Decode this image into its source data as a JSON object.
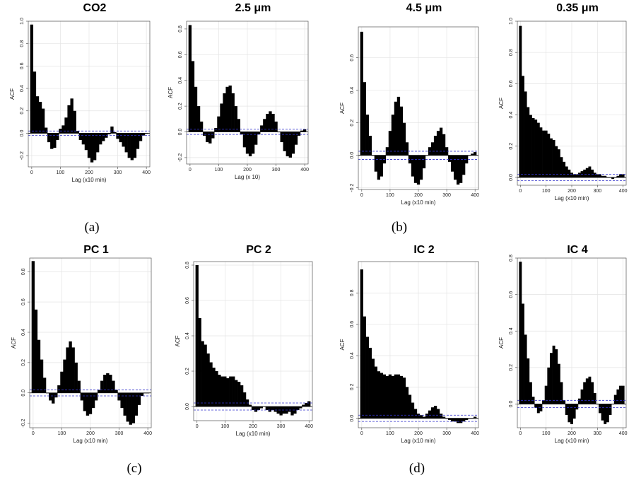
{
  "chart_data": [
    {
      "type": "bar",
      "title": "CO2",
      "xlabel": "Lag (x10 min)",
      "ylabel": "ACF",
      "color": "#000000",
      "ci_color": "#3333cc",
      "ci_lines": [
        0.02,
        -0.02
      ],
      "x": [
        0,
        10,
        20,
        30,
        40,
        50,
        60,
        70,
        80,
        90,
        100,
        110,
        120,
        130,
        140,
        150,
        160,
        170,
        180,
        190,
        200,
        210,
        220,
        230,
        240,
        250,
        260,
        270,
        280,
        290,
        300,
        310,
        320,
        330,
        340,
        350,
        360,
        370,
        380,
        390,
        400
      ],
      "values": [
        0.97,
        0.55,
        0.33,
        0.28,
        0.22,
        0.05,
        -0.08,
        -0.14,
        -0.13,
        -0.06,
        0.04,
        0.07,
        0.14,
        0.25,
        0.31,
        0.2,
        0.02,
        -0.06,
        -0.1,
        -0.15,
        -0.22,
        -0.26,
        -0.24,
        -0.17,
        -0.1,
        -0.07,
        -0.04,
        -0.01,
        0.06,
        0.01,
        -0.05,
        -0.08,
        -0.12,
        -0.17,
        -0.22,
        -0.24,
        -0.22,
        -0.14,
        -0.07,
        -0.02,
        0.0
      ],
      "xlim": [
        -12,
        412
      ],
      "xticks": [
        0,
        100,
        200,
        300,
        400
      ],
      "ylim": [
        -0.3,
        1.0
      ],
      "yticks": [
        {
          "value": -0.2,
          "label": "-0.2"
        },
        {
          "value": 0,
          "label": "0.0"
        },
        {
          "value": 0.2,
          "label": "0.2"
        },
        {
          "value": 0.4,
          "label": "0.4"
        },
        {
          "value": 0.6,
          "label": "0.6"
        },
        {
          "value": 0.8,
          "label": "0.8"
        },
        {
          "value": 1,
          "label": "1.0"
        }
      ],
      "grid": true
    },
    {
      "type": "bar",
      "title": "2.5 μm",
      "xlabel": "Lag (x 10)",
      "ylabel": "ACF",
      "color": "#000000",
      "ci_color": "#3333cc",
      "ci_lines": [
        0.02,
        -0.02
      ],
      "x": [
        0,
        10,
        20,
        30,
        40,
        50,
        60,
        70,
        80,
        90,
        100,
        110,
        120,
        130,
        140,
        150,
        160,
        170,
        180,
        190,
        200,
        210,
        220,
        230,
        240,
        250,
        260,
        270,
        280,
        290,
        300,
        310,
        320,
        330,
        340,
        350,
        360,
        370,
        380,
        390,
        400
      ],
      "values": [
        0.83,
        0.55,
        0.35,
        0.2,
        0.08,
        -0.03,
        -0.08,
        -0.09,
        -0.05,
        0.03,
        0.12,
        0.22,
        0.3,
        0.35,
        0.36,
        0.3,
        0.2,
        0.1,
        -0.02,
        -0.12,
        -0.17,
        -0.19,
        -0.17,
        -0.1,
        -0.02,
        0.05,
        0.1,
        0.14,
        0.16,
        0.14,
        0.08,
        0.0,
        -0.08,
        -0.15,
        -0.19,
        -0.2,
        -0.17,
        -0.1,
        -0.03,
        0.01,
        0.02
      ],
      "xlim": [
        -12,
        412
      ],
      "xticks": [
        0,
        100,
        200,
        300,
        400
      ],
      "ylim": [
        -0.25,
        0.86
      ],
      "yticks": [
        {
          "value": -0.2,
          "label": "-0.2"
        },
        {
          "value": 0,
          "label": "0.0"
        },
        {
          "value": 0.2,
          "label": "0.2"
        },
        {
          "value": 0.4,
          "label": "0.4"
        },
        {
          "value": 0.6,
          "label": "0.6"
        },
        {
          "value": 0.8,
          "label": "0.8"
        }
      ],
      "grid": true
    },
    {
      "type": "bar",
      "title": "4.5 μm",
      "xlabel": "Lag (x10 min)",
      "ylabel": "ACF",
      "color": "#000000",
      "ci_color": "#3333cc",
      "ci_lines": [
        0.025,
        -0.025
      ],
      "x": [
        0,
        10,
        20,
        30,
        40,
        50,
        60,
        70,
        80,
        90,
        100,
        110,
        120,
        130,
        140,
        150,
        160,
        170,
        180,
        190,
        200,
        210,
        220,
        230,
        240,
        250,
        260,
        270,
        280,
        290,
        300,
        310,
        320,
        330,
        340,
        350,
        360,
        370,
        380,
        390,
        400
      ],
      "values": [
        0.76,
        0.45,
        0.25,
        0.12,
        0.0,
        -0.1,
        -0.15,
        -0.13,
        -0.05,
        0.05,
        0.15,
        0.25,
        0.33,
        0.36,
        0.3,
        0.2,
        0.08,
        -0.05,
        -0.13,
        -0.17,
        -0.18,
        -0.15,
        -0.08,
        0.0,
        0.05,
        0.08,
        0.12,
        0.15,
        0.17,
        0.13,
        0.05,
        -0.04,
        -0.1,
        -0.15,
        -0.18,
        -0.17,
        -0.12,
        -0.05,
        0.0,
        0.01,
        0.02
      ],
      "xlim": [
        -12,
        412
      ],
      "xticks": [
        0,
        100,
        200,
        300,
        400
      ],
      "ylim": [
        -0.21,
        0.79
      ],
      "yticks": [
        {
          "value": -0.2,
          "label": "-0.2"
        },
        {
          "value": 0,
          "label": "0.0"
        },
        {
          "value": 0.2,
          "label": "0.2"
        },
        {
          "value": 0.4,
          "label": "0.4"
        },
        {
          "value": 0.6,
          "label": "0.6"
        }
      ],
      "grid": true
    },
    {
      "type": "bar",
      "title": "0.35 μm",
      "xlabel": "Lag (x10 min)",
      "ylabel": "ACF",
      "color": "#000000",
      "ci_color": "#3333cc",
      "ci_lines": [
        0.02,
        -0.02
      ],
      "x": [
        0,
        10,
        20,
        30,
        40,
        50,
        60,
        70,
        80,
        90,
        100,
        110,
        120,
        130,
        140,
        150,
        160,
        170,
        180,
        190,
        200,
        210,
        220,
        230,
        240,
        250,
        260,
        270,
        280,
        290,
        300,
        310,
        320,
        330,
        340,
        350,
        360,
        370,
        380,
        390,
        400
      ],
      "values": [
        0.97,
        0.65,
        0.55,
        0.45,
        0.4,
        0.38,
        0.37,
        0.35,
        0.32,
        0.3,
        0.3,
        0.28,
        0.25,
        0.24,
        0.2,
        0.18,
        0.13,
        0.1,
        0.07,
        0.05,
        0.03,
        0.02,
        0.02,
        0.03,
        0.04,
        0.05,
        0.06,
        0.07,
        0.05,
        0.03,
        0.02,
        0.02,
        0.01,
        0.01,
        0.0,
        0.0,
        -0.01,
        0.0,
        0.01,
        0.02,
        0.02
      ],
      "xlim": [
        -12,
        412
      ],
      "xticks": [
        0,
        100,
        200,
        300,
        400
      ],
      "ylim": [
        -0.05,
        1.0
      ],
      "yticks": [
        {
          "value": 0,
          "label": "0.0"
        },
        {
          "value": 0.2,
          "label": "0.2"
        },
        {
          "value": 0.4,
          "label": "0.4"
        },
        {
          "value": 0.6,
          "label": "0.6"
        },
        {
          "value": 0.8,
          "label": "0.8"
        },
        {
          "value": 1,
          "label": "1.0"
        }
      ],
      "grid": true
    },
    {
      "type": "bar",
      "title": "PC 1",
      "xlabel": "Lag (x10 min)",
      "ylabel": "ACF",
      "color": "#000000",
      "ci_color": "#3333cc",
      "ci_lines": [
        0.02,
        -0.02
      ],
      "x": [
        0,
        10,
        20,
        30,
        40,
        50,
        60,
        70,
        80,
        90,
        100,
        110,
        120,
        130,
        140,
        150,
        160,
        170,
        180,
        190,
        200,
        210,
        220,
        230,
        240,
        250,
        260,
        270,
        280,
        290,
        300,
        310,
        320,
        330,
        340,
        350,
        360,
        370,
        380,
        390,
        400
      ],
      "values": [
        0.87,
        0.55,
        0.35,
        0.22,
        0.1,
        0.0,
        -0.05,
        -0.07,
        -0.03,
        0.05,
        0.14,
        0.22,
        0.3,
        0.34,
        0.3,
        0.2,
        0.08,
        -0.05,
        -0.12,
        -0.15,
        -0.14,
        -0.1,
        -0.05,
        0.02,
        0.08,
        0.12,
        0.13,
        0.12,
        0.08,
        0.02,
        -0.05,
        -0.1,
        -0.15,
        -0.19,
        -0.21,
        -0.2,
        -0.15,
        -0.08,
        -0.02,
        0.0,
        0.0
      ],
      "xlim": [
        -12,
        412
      ],
      "xticks": [
        0,
        100,
        200,
        300,
        400
      ],
      "ylim": [
        -0.23,
        0.89
      ],
      "yticks": [
        {
          "value": -0.2,
          "label": "-0.2"
        },
        {
          "value": 0,
          "label": "0.0"
        },
        {
          "value": 0.2,
          "label": "0.2"
        },
        {
          "value": 0.4,
          "label": "0.4"
        },
        {
          "value": 0.6,
          "label": "0.6"
        },
        {
          "value": 0.8,
          "label": "0.8"
        }
      ],
      "grid": true
    },
    {
      "type": "bar",
      "title": "PC 2",
      "xlabel": "Lag (x10 min)",
      "ylabel": "ACF",
      "color": "#000000",
      "ci_color": "#3333cc",
      "ci_lines": [
        0.02,
        -0.02
      ],
      "x": [
        0,
        10,
        20,
        30,
        40,
        50,
        60,
        70,
        80,
        90,
        100,
        110,
        120,
        130,
        140,
        150,
        160,
        170,
        180,
        190,
        200,
        210,
        220,
        230,
        240,
        250,
        260,
        270,
        280,
        290,
        300,
        310,
        320,
        330,
        340,
        350,
        360,
        370,
        380,
        390,
        400
      ],
      "values": [
        0.8,
        0.5,
        0.37,
        0.35,
        0.3,
        0.25,
        0.22,
        0.2,
        0.18,
        0.17,
        0.17,
        0.16,
        0.17,
        0.17,
        0.15,
        0.14,
        0.12,
        0.08,
        0.04,
        0.01,
        -0.02,
        -0.03,
        -0.02,
        -0.01,
        0.0,
        -0.02,
        -0.03,
        -0.02,
        -0.03,
        -0.04,
        -0.05,
        -0.04,
        -0.04,
        -0.03,
        -0.05,
        -0.04,
        -0.02,
        -0.01,
        0.01,
        0.02,
        0.03
      ],
      "xlim": [
        -12,
        412
      ],
      "xticks": [
        0,
        100,
        200,
        300,
        400
      ],
      "ylim": [
        -0.08,
        0.82
      ],
      "yticks": [
        {
          "value": 0,
          "label": "0.0"
        },
        {
          "value": 0.2,
          "label": "0.2"
        },
        {
          "value": 0.4,
          "label": "0.4"
        },
        {
          "value": 0.6,
          "label": "0.6"
        },
        {
          "value": 0.8,
          "label": "0.8"
        }
      ],
      "grid": true
    },
    {
      "type": "bar",
      "title": "IC 2",
      "xlabel": "Lag (x10 min)",
      "ylabel": "ACF",
      "color": "#000000",
      "ci_color": "#3333cc",
      "ci_lines": [
        0.02,
        -0.02
      ],
      "x": [
        0,
        10,
        20,
        30,
        40,
        50,
        60,
        70,
        80,
        90,
        100,
        110,
        120,
        130,
        140,
        150,
        160,
        170,
        180,
        190,
        200,
        210,
        220,
        230,
        240,
        250,
        260,
        270,
        280,
        290,
        300,
        310,
        320,
        330,
        340,
        350,
        360,
        370,
        380,
        390,
        400
      ],
      "values": [
        0.95,
        0.65,
        0.52,
        0.45,
        0.38,
        0.33,
        0.3,
        0.29,
        0.28,
        0.27,
        0.28,
        0.27,
        0.28,
        0.28,
        0.27,
        0.26,
        0.2,
        0.15,
        0.1,
        0.06,
        0.03,
        0.02,
        0.01,
        0.03,
        0.05,
        0.07,
        0.08,
        0.06,
        0.03,
        0.01,
        0.0,
        -0.01,
        -0.02,
        -0.02,
        -0.03,
        -0.03,
        -0.02,
        -0.01,
        0.0,
        0.0,
        0.01
      ],
      "xlim": [
        -12,
        412
      ],
      "xticks": [
        0,
        100,
        200,
        300,
        400
      ],
      "ylim": [
        -0.06,
        1.0
      ],
      "yticks": [
        {
          "value": 0,
          "label": "0.0"
        },
        {
          "value": 0.2,
          "label": "0.2"
        },
        {
          "value": 0.4,
          "label": "0.4"
        },
        {
          "value": 0.6,
          "label": "0.6"
        },
        {
          "value": 0.8,
          "label": "0.8"
        }
      ],
      "grid": true
    },
    {
      "type": "bar",
      "title": "IC 4",
      "xlabel": "Lag (x10 min)",
      "ylabel": "ACF",
      "color": "#000000",
      "ci_color": "#3333cc",
      "ci_lines": [
        0.02,
        -0.02
      ],
      "x": [
        0,
        10,
        20,
        30,
        40,
        50,
        60,
        70,
        80,
        90,
        100,
        110,
        120,
        130,
        140,
        150,
        160,
        170,
        180,
        190,
        200,
        210,
        220,
        230,
        240,
        250,
        260,
        270,
        280,
        290,
        300,
        310,
        320,
        330,
        340,
        350,
        360,
        370,
        380,
        390,
        400
      ],
      "values": [
        0.78,
        0.55,
        0.38,
        0.25,
        0.12,
        0.04,
        -0.02,
        -0.05,
        -0.04,
        0.02,
        0.1,
        0.2,
        0.28,
        0.32,
        0.3,
        0.22,
        0.12,
        0.02,
        -0.06,
        -0.1,
        -0.11,
        -0.08,
        -0.03,
        0.03,
        0.08,
        0.12,
        0.14,
        0.15,
        0.12,
        0.06,
        0.0,
        -0.05,
        -0.09,
        -0.11,
        -0.1,
        -0.06,
        0.0,
        0.05,
        0.08,
        0.1,
        0.1
      ],
      "xlim": [
        -12,
        412
      ],
      "xticks": [
        0,
        100,
        200,
        300,
        400
      ],
      "ylim": [
        -0.13,
        0.8
      ],
      "yticks": [
        {
          "value": 0,
          "label": "0.0"
        },
        {
          "value": 0.2,
          "label": "0.2"
        },
        {
          "value": 0.4,
          "label": "0.4"
        },
        {
          "value": 0.6,
          "label": "0.6"
        },
        {
          "value": 0.8,
          "label": "0.8"
        }
      ],
      "grid": true
    }
  ],
  "captions": [
    "(a)",
    "(b)",
    "(c)",
    "(d)"
  ]
}
